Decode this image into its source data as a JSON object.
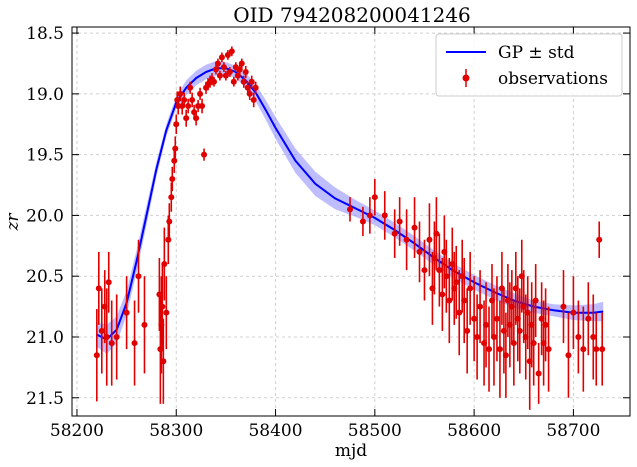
{
  "chart_data": {
    "type": "scatter",
    "title": "OID 794208200041246",
    "xlabel": "mjd",
    "ylabel": "zr",
    "xlim": [
      58195,
      58757
    ],
    "ylim": [
      21.65,
      18.45
    ],
    "y_inverted": true,
    "xticks": [
      58200,
      58300,
      58400,
      58500,
      58600,
      58700
    ],
    "yticks": [
      18.5,
      19.0,
      19.5,
      20.0,
      20.5,
      21.0,
      21.5
    ],
    "grid": true,
    "legend": {
      "placement": "top-right",
      "entries": [
        "GP ± std",
        "observations"
      ]
    },
    "colors": {
      "gp": "#0000ff",
      "band": "#7b7bff",
      "observations": "#e00000"
    },
    "series": [
      {
        "name": "GP ± std",
        "kind": "line_with_band",
        "x": [
          58220,
          58230,
          58240,
          58250,
          58260,
          58270,
          58280,
          58290,
          58300,
          58310,
          58320,
          58330,
          58340,
          58350,
          58360,
          58370,
          58380,
          58390,
          58400,
          58420,
          58440,
          58460,
          58480,
          58500,
          58520,
          58540,
          58560,
          58580,
          58600,
          58620,
          58640,
          58660,
          58680,
          58700,
          58720,
          58730
        ],
        "y": [
          20.98,
          21.02,
          20.94,
          20.72,
          20.38,
          20.0,
          19.62,
          19.3,
          19.07,
          18.95,
          18.87,
          18.82,
          18.79,
          18.79,
          18.82,
          18.89,
          18.99,
          19.13,
          19.28,
          19.55,
          19.74,
          19.86,
          19.94,
          20.02,
          20.12,
          20.23,
          20.35,
          20.46,
          20.55,
          20.63,
          20.7,
          20.75,
          20.78,
          20.8,
          20.8,
          20.79
        ],
        "std": [
          0.1,
          0.12,
          0.11,
          0.1,
          0.09,
          0.08,
          0.06,
          0.05,
          0.05,
          0.06,
          0.06,
          0.06,
          0.06,
          0.05,
          0.05,
          0.06,
          0.07,
          0.08,
          0.09,
          0.1,
          0.1,
          0.09,
          0.07,
          0.06,
          0.06,
          0.06,
          0.06,
          0.06,
          0.06,
          0.06,
          0.06,
          0.05,
          0.05,
          0.06,
          0.07,
          0.08
        ]
      },
      {
        "name": "observations",
        "kind": "errorbar",
        "points": [
          [
            58220,
            21.15,
            0.38
          ],
          [
            58222,
            20.6,
            0.3
          ],
          [
            58225,
            20.95,
            0.35
          ],
          [
            58228,
            20.75,
            0.3
          ],
          [
            58230,
            21.0,
            0.4
          ],
          [
            58232,
            20.55,
            0.25
          ],
          [
            58235,
            21.05,
            0.35
          ],
          [
            58240,
            21.0,
            0.35
          ],
          [
            58250,
            20.8,
            0.3
          ],
          [
            58258,
            21.05,
            0.35
          ],
          [
            58262,
            20.5,
            0.3
          ],
          [
            58268,
            20.9,
            0.4
          ],
          [
            58283,
            20.65,
            0.3
          ],
          [
            58284,
            21.1,
            0.45
          ],
          [
            58285,
            20.9,
            0.4
          ],
          [
            58286,
            20.75,
            0.35
          ],
          [
            58287,
            21.2,
            0.35
          ],
          [
            58288,
            20.4,
            0.3
          ],
          [
            58290,
            20.8,
            0.3
          ],
          [
            58292,
            20.2,
            0.2
          ],
          [
            58293,
            20.05,
            0.15
          ],
          [
            58295,
            19.85,
            0.12
          ],
          [
            58296,
            19.7,
            0.1
          ],
          [
            58298,
            19.55,
            0.1
          ],
          [
            58299,
            19.45,
            0.1
          ],
          [
            58300,
            19.25,
            0.08
          ],
          [
            58301,
            19.05,
            0.07
          ],
          [
            58302,
            19.1,
            0.07
          ],
          [
            58304,
            19.0,
            0.06
          ],
          [
            58306,
            19.1,
            0.07
          ],
          [
            58308,
            19.05,
            0.06
          ],
          [
            58310,
            19.2,
            0.07
          ],
          [
            58312,
            19.1,
            0.06
          ],
          [
            58314,
            18.95,
            0.05
          ],
          [
            58316,
            19.05,
            0.06
          ],
          [
            58318,
            19.15,
            0.06
          ],
          [
            58320,
            19.2,
            0.06
          ],
          [
            58322,
            19.1,
            0.05
          ],
          [
            58324,
            19.0,
            0.05
          ],
          [
            58326,
            19.1,
            0.06
          ],
          [
            58328,
            19.5,
            0.05
          ],
          [
            58330,
            18.95,
            0.05
          ],
          [
            58332,
            18.92,
            0.05
          ],
          [
            58334,
            18.9,
            0.05
          ],
          [
            58336,
            18.88,
            0.05
          ],
          [
            58338,
            18.9,
            0.04
          ],
          [
            58340,
            18.8,
            0.04
          ],
          [
            58342,
            18.75,
            0.04
          ],
          [
            58344,
            18.85,
            0.04
          ],
          [
            58346,
            18.7,
            0.04
          ],
          [
            58348,
            18.78,
            0.04
          ],
          [
            58350,
            18.85,
            0.04
          ],
          [
            58352,
            18.68,
            0.04
          ],
          [
            58354,
            18.82,
            0.04
          ],
          [
            58356,
            18.65,
            0.04
          ],
          [
            58358,
            18.9,
            0.04
          ],
          [
            58360,
            18.78,
            0.04
          ],
          [
            58362,
            18.85,
            0.04
          ],
          [
            58364,
            18.8,
            0.04
          ],
          [
            58366,
            18.75,
            0.04
          ],
          [
            58368,
            18.9,
            0.05
          ],
          [
            58370,
            18.82,
            0.05
          ],
          [
            58372,
            18.95,
            0.05
          ],
          [
            58374,
            19.0,
            0.05
          ],
          [
            58376,
            18.9,
            0.05
          ],
          [
            58378,
            19.05,
            0.06
          ],
          [
            58380,
            18.95,
            0.05
          ],
          [
            58475,
            19.95,
            0.1
          ],
          [
            58488,
            20.05,
            0.12
          ],
          [
            58495,
            20.0,
            0.15
          ],
          [
            58500,
            19.85,
            0.15
          ],
          [
            58510,
            20.0,
            0.2
          ],
          [
            58520,
            20.15,
            0.2
          ],
          [
            58525,
            20.05,
            0.2
          ],
          [
            58532,
            20.2,
            0.25
          ],
          [
            58540,
            20.1,
            0.25
          ],
          [
            58545,
            20.3,
            0.25
          ],
          [
            58550,
            20.45,
            0.25
          ],
          [
            58555,
            20.2,
            0.3
          ],
          [
            58558,
            20.6,
            0.3
          ],
          [
            58560,
            20.35,
            0.3
          ],
          [
            58562,
            20.15,
            0.3
          ],
          [
            58565,
            20.45,
            0.3
          ],
          [
            58568,
            20.65,
            0.3
          ],
          [
            58570,
            20.3,
            0.3
          ],
          [
            58572,
            20.5,
            0.3
          ],
          [
            58575,
            20.7,
            0.35
          ],
          [
            58578,
            20.4,
            0.3
          ],
          [
            58580,
            20.6,
            0.3
          ],
          [
            58582,
            20.55,
            0.3
          ],
          [
            58585,
            20.8,
            0.35
          ],
          [
            58588,
            20.5,
            0.3
          ],
          [
            58590,
            20.7,
            0.35
          ],
          [
            58593,
            20.95,
            0.35
          ],
          [
            58596,
            20.6,
            0.3
          ],
          [
            58600,
            20.85,
            0.35
          ],
          [
            58603,
            21.0,
            0.35
          ],
          [
            58606,
            20.75,
            0.3
          ],
          [
            58610,
            21.05,
            0.35
          ],
          [
            58612,
            20.9,
            0.35
          ],
          [
            58615,
            21.1,
            0.35
          ],
          [
            58618,
            20.7,
            0.3
          ],
          [
            58620,
            21.0,
            0.4
          ],
          [
            58623,
            20.85,
            0.35
          ],
          [
            58626,
            21.1,
            0.4
          ],
          [
            58628,
            20.6,
            0.3
          ],
          [
            58630,
            20.95,
            0.35
          ],
          [
            58632,
            21.15,
            0.35
          ],
          [
            58634,
            20.7,
            0.3
          ],
          [
            58636,
            20.9,
            0.35
          ],
          [
            58638,
            20.75,
            0.3
          ],
          [
            58640,
            21.05,
            0.35
          ],
          [
            58642,
            20.6,
            0.3
          ],
          [
            58644,
            20.85,
            0.35
          ],
          [
            58646,
            20.95,
            0.35
          ],
          [
            58648,
            20.5,
            0.3
          ],
          [
            58650,
            20.75,
            0.3
          ],
          [
            58652,
            21.0,
            0.35
          ],
          [
            58654,
            20.8,
            0.3
          ],
          [
            58656,
            21.2,
            0.4
          ],
          [
            58658,
            20.9,
            0.35
          ],
          [
            58660,
            21.05,
            0.35
          ],
          [
            58662,
            20.7,
            0.3
          ],
          [
            58665,
            21.3,
            0.25
          ],
          [
            58668,
            20.85,
            0.3
          ],
          [
            58670,
            21.05,
            0.35
          ],
          [
            58672,
            20.9,
            0.3
          ],
          [
            58675,
            21.1,
            0.35
          ],
          [
            58690,
            20.75,
            0.3
          ],
          [
            58695,
            21.15,
            0.35
          ],
          [
            58700,
            20.8,
            0.3
          ],
          [
            58705,
            21.0,
            0.3
          ],
          [
            58710,
            21.1,
            0.35
          ],
          [
            58715,
            20.85,
            0.3
          ],
          [
            58720,
            21.0,
            0.35
          ],
          [
            58723,
            21.1,
            0.3
          ],
          [
            58726,
            20.2,
            0.15
          ],
          [
            58729,
            21.1,
            0.3
          ]
        ]
      }
    ]
  }
}
